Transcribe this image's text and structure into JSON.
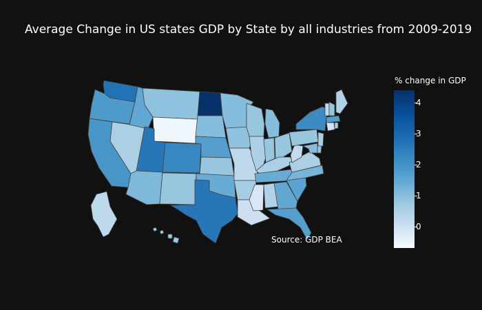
{
  "title": "Average Change in US states GDP by State by all industries from 2009-2019",
  "source": "Source: GDP BEA",
  "colorbar": {
    "title": "% change in GDP",
    "ticks": [
      "4",
      "3",
      "2",
      "1",
      "0"
    ],
    "min": -0.7,
    "max": 4.4,
    "colorscale": "Blues"
  },
  "map_data": {
    "type": "choropleth",
    "scope": "usa",
    "values": {
      "WA": 3.1,
      "OR": 2.3,
      "CA": 2.4,
      "NV": 1.0,
      "ID": 2.0,
      "MT": 1.4,
      "WY": -0.5,
      "UT": 3.0,
      "CO": 2.7,
      "AZ": 1.6,
      "NM": 1.3,
      "ND": 4.4,
      "SD": 1.5,
      "NE": 2.2,
      "KS": 1.3,
      "OK": 1.9,
      "TX": 3.0,
      "MN": 1.5,
      "IA": 1.4,
      "MO": 0.7,
      "AR": 1.1,
      "LA": 0.4,
      "WI": 1.3,
      "IL": 1.0,
      "MI": 1.5,
      "IN": 1.3,
      "OH": 1.3,
      "KY": 1.0,
      "TN": 1.9,
      "MS": 0.1,
      "AL": 0.9,
      "GA": 2.0,
      "FL": 2.2,
      "SC": 2.1,
      "NC": 1.7,
      "VA": 1.0,
      "WV": 0.6,
      "PA": 1.3,
      "NY": 2.6,
      "ME": 0.9,
      "VT": 0.6,
      "NH": 1.3,
      "MA": 2.2,
      "CT": 0.2,
      "RI": 1.0,
      "NJ": 1.0,
      "DE": 1.3,
      "MD": 1.5,
      "AK": 0.7,
      "HI": 1.2
    }
  }
}
